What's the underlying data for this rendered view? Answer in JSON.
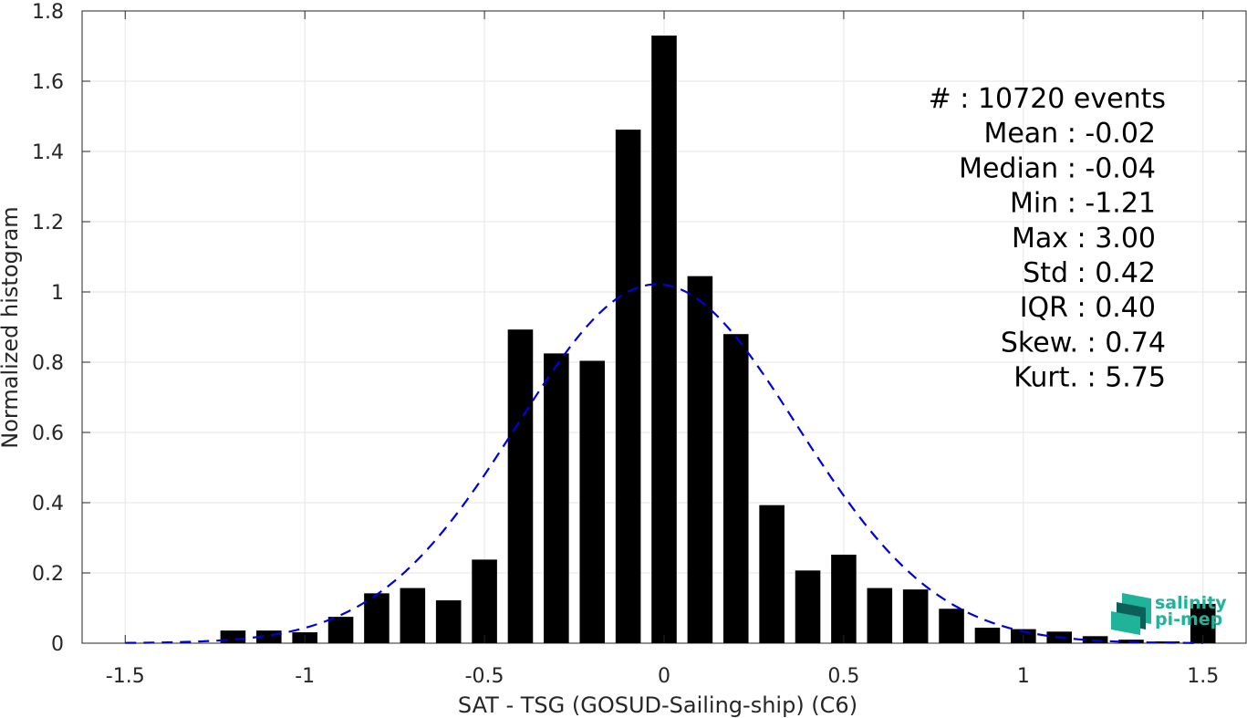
{
  "chart_data": {
    "type": "bar",
    "xlabel": "SAT - TSG (GOSUD-Sailing-ship) (C6)",
    "ylabel": "Normalized histogram",
    "xlim": [
      -1.62,
      1.62
    ],
    "ylim": [
      0,
      1.8
    ],
    "grid": true,
    "bar_width": 0.07,
    "bar_color": "#000000",
    "x_ticks": [
      {
        "value": -1.5,
        "label": "-1.5"
      },
      {
        "value": -1,
        "label": "-1"
      },
      {
        "value": -0.5,
        "label": "-0.5"
      },
      {
        "value": 0,
        "label": "0"
      },
      {
        "value": 0.5,
        "label": "0.5"
      },
      {
        "value": 1,
        "label": "1"
      },
      {
        "value": 1.5,
        "label": "1.5"
      }
    ],
    "y_ticks": [
      {
        "value": 0,
        "label": "0"
      },
      {
        "value": 0.2,
        "label": "0.2"
      },
      {
        "value": 0.4,
        "label": "0.4"
      },
      {
        "value": 0.6,
        "label": "0.6"
      },
      {
        "value": 0.8,
        "label": "0.8"
      },
      {
        "value": 1,
        "label": "1"
      },
      {
        "value": 1.2,
        "label": "1.2"
      },
      {
        "value": 1.4,
        "label": "1.4"
      },
      {
        "value": 1.6,
        "label": "1.6"
      },
      {
        "value": 1.8,
        "label": "1.8"
      }
    ],
    "bars": {
      "x": [
        -1.2,
        -1.1,
        -1.0,
        -0.9,
        -0.8,
        -0.7,
        -0.6,
        -0.5,
        -0.4,
        -0.3,
        -0.2,
        -0.1,
        0.0,
        0.1,
        0.2,
        0.3,
        0.4,
        0.5,
        0.6,
        0.7,
        0.8,
        0.9,
        1.0,
        1.1,
        1.2,
        1.3,
        1.4,
        1.5
      ],
      "values": [
        0.036,
        0.036,
        0.031,
        0.075,
        0.142,
        0.157,
        0.122,
        0.238,
        0.893,
        0.825,
        0.804,
        1.462,
        1.73,
        1.045,
        0.88,
        0.393,
        0.207,
        0.252,
        0.157,
        0.153,
        0.098,
        0.044,
        0.04,
        0.033,
        0.02,
        0.01,
        0.005,
        0.112
      ]
    },
    "fit_curve": {
      "style": "dashed",
      "color": "#0000dd",
      "mean": -0.02,
      "std": 0.39,
      "peak": 1.022,
      "x_range": [
        -1.5,
        1.5
      ]
    },
    "stats": [
      {
        "label": "#  ",
        "value": ": 10720 events"
      },
      {
        "label": "Mean ",
        "value": ": -0.02"
      },
      {
        "label": "Median ",
        "value": ": -0.04"
      },
      {
        "label": "Min ",
        "value": ": -1.21"
      },
      {
        "label": "Max ",
        "value": ": 3.00"
      },
      {
        "label": "Std ",
        "value": ": 0.42"
      },
      {
        "label": "IQR ",
        "value": ": 0.40"
      },
      {
        "label": "Skew. ",
        "value": ": 0.74"
      },
      {
        "label": "Kurt. ",
        "value": ": 5.75"
      }
    ]
  },
  "logo": {
    "line1": "salinity",
    "line2": "pi-mep",
    "color": "#1fb39a",
    "dark_color": "#0d5f5a"
  }
}
